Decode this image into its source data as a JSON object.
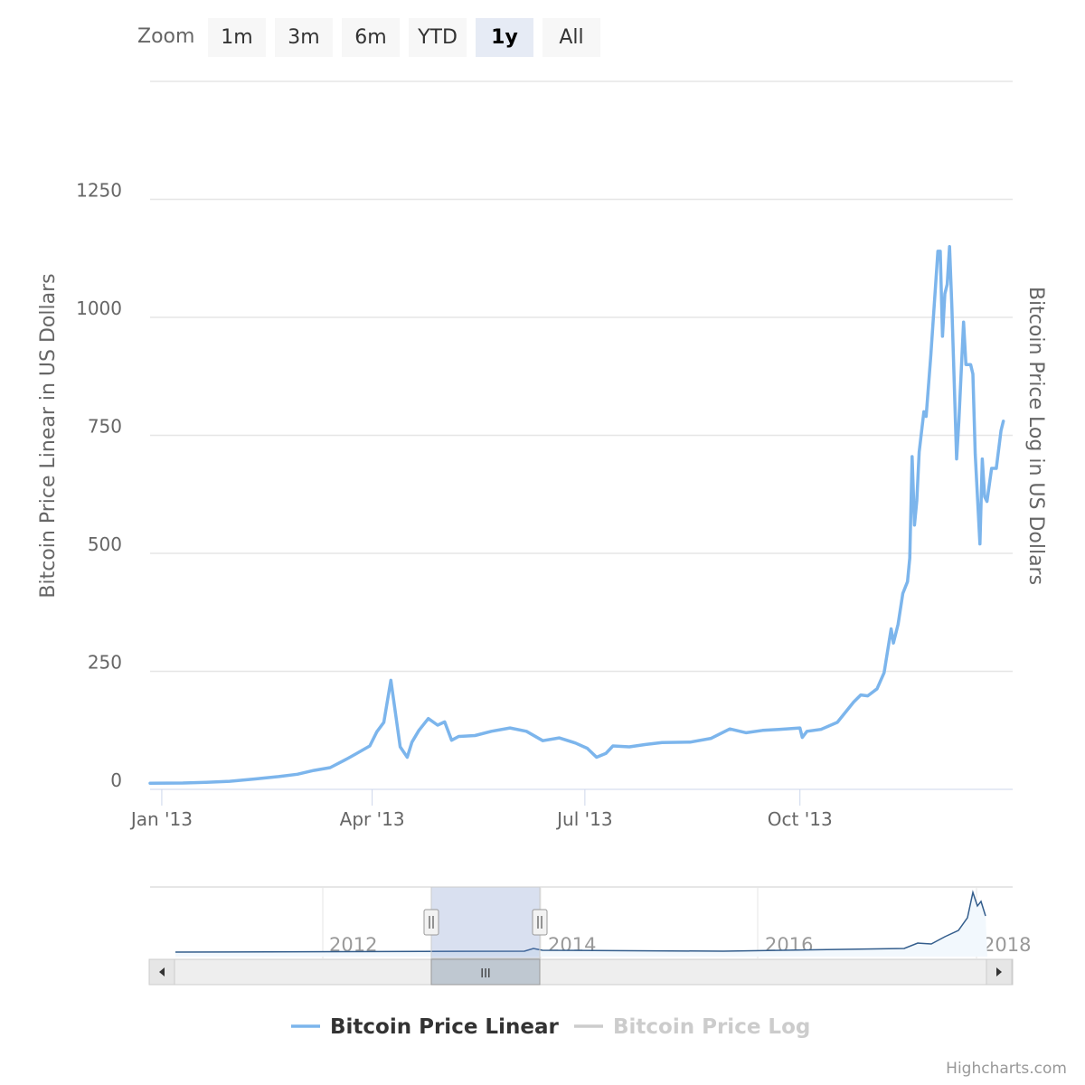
{
  "zoom": {
    "label": "Zoom",
    "buttons": [
      {
        "label": "1m",
        "selected": false
      },
      {
        "label": "3m",
        "selected": false
      },
      {
        "label": "6m",
        "selected": false
      },
      {
        "label": "YTD",
        "selected": false
      },
      {
        "label": "1y",
        "selected": true
      },
      {
        "label": "All",
        "selected": false
      }
    ]
  },
  "chart_data": {
    "type": "line",
    "title": "",
    "ylabel": "Bitcoin Price Linear in US Dollars",
    "ylabel_right": "Bitcoin Price Log in US Dollars",
    "xlabel": "",
    "ylim": [
      0,
      1500
    ],
    "yticks": [
      0,
      250,
      500,
      750,
      1000,
      1250
    ],
    "ytick_labels": [
      "0",
      "250",
      "500",
      "750",
      "1000",
      "1250"
    ],
    "xlim": [
      "2012-12-27",
      "2013-12-31"
    ],
    "xticks": [
      "2013-01-01",
      "2013-04-01",
      "2013-07-01",
      "2013-10-01"
    ],
    "xtick_labels": [
      "Jan '13",
      "Apr '13",
      "Jul '13",
      "Oct '13"
    ],
    "grid": true,
    "legend_position": "bottom-center",
    "series": [
      {
        "name": "Bitcoin Price Linear",
        "color": "#7cb5ec",
        "visible": true,
        "points": [
          [
            "2012-12-27",
            13
          ],
          [
            "2013-01-10",
            13.5
          ],
          [
            "2013-01-20",
            15
          ],
          [
            "2013-01-30",
            17
          ],
          [
            "2013-02-10",
            22
          ],
          [
            "2013-02-20",
            27
          ],
          [
            "2013-02-28",
            32
          ],
          [
            "2013-03-07",
            40
          ],
          [
            "2013-03-14",
            46
          ],
          [
            "2013-03-21",
            64
          ],
          [
            "2013-03-25",
            75
          ],
          [
            "2013-03-31",
            92
          ],
          [
            "2013-04-03",
            122
          ],
          [
            "2013-04-06",
            142
          ],
          [
            "2013-04-09",
            231
          ],
          [
            "2013-04-11",
            160
          ],
          [
            "2013-04-13",
            90
          ],
          [
            "2013-04-16",
            68
          ],
          [
            "2013-04-18",
            100
          ],
          [
            "2013-04-21",
            125
          ],
          [
            "2013-04-25",
            150
          ],
          [
            "2013-04-29",
            136
          ],
          [
            "2013-05-02",
            143
          ],
          [
            "2013-05-05",
            104
          ],
          [
            "2013-05-08",
            112
          ],
          [
            "2013-05-15",
            114
          ],
          [
            "2013-05-22",
            123
          ],
          [
            "2013-05-30",
            130
          ],
          [
            "2013-06-06",
            123
          ],
          [
            "2013-06-13",
            103
          ],
          [
            "2013-06-20",
            109
          ],
          [
            "2013-06-27",
            98
          ],
          [
            "2013-07-02",
            87
          ],
          [
            "2013-07-06",
            68
          ],
          [
            "2013-07-10",
            76
          ],
          [
            "2013-07-13",
            92
          ],
          [
            "2013-07-20",
            90
          ],
          [
            "2013-07-27",
            95
          ],
          [
            "2013-08-03",
            99
          ],
          [
            "2013-08-15",
            100
          ],
          [
            "2013-08-24",
            108
          ],
          [
            "2013-09-01",
            128
          ],
          [
            "2013-09-08",
            120
          ],
          [
            "2013-09-15",
            125
          ],
          [
            "2013-09-22",
            127
          ],
          [
            "2013-10-01",
            130
          ],
          [
            "2013-10-02",
            110
          ],
          [
            "2013-10-04",
            123
          ],
          [
            "2013-10-10",
            127
          ],
          [
            "2013-10-17",
            142
          ],
          [
            "2013-10-24",
            185
          ],
          [
            "2013-10-27",
            200
          ],
          [
            "2013-10-30",
            198
          ],
          [
            "2013-11-03",
            213
          ],
          [
            "2013-11-06",
            247
          ],
          [
            "2013-11-09",
            340
          ],
          [
            "2013-11-10",
            310
          ],
          [
            "2013-11-12",
            350
          ],
          [
            "2013-11-14",
            415
          ],
          [
            "2013-11-16",
            440
          ],
          [
            "2013-11-17",
            490
          ],
          [
            "2013-11-18",
            705
          ],
          [
            "2013-11-19",
            560
          ],
          [
            "2013-11-20",
            612
          ],
          [
            "2013-11-21",
            715
          ],
          [
            "2013-11-23",
            800
          ],
          [
            "2013-11-24",
            790
          ],
          [
            "2013-11-26",
            920
          ],
          [
            "2013-11-29",
            1140
          ],
          [
            "2013-11-30",
            1140
          ],
          [
            "2013-12-01",
            960
          ],
          [
            "2013-12-02",
            1050
          ],
          [
            "2013-12-03",
            1070
          ],
          [
            "2013-12-04",
            1150
          ],
          [
            "2013-12-05",
            1020
          ],
          [
            "2013-12-07",
            700
          ],
          [
            "2013-12-08",
            780
          ],
          [
            "2013-12-10",
            990
          ],
          [
            "2013-12-11",
            900
          ],
          [
            "2013-12-13",
            900
          ],
          [
            "2013-12-14",
            880
          ],
          [
            "2013-12-15",
            710
          ],
          [
            "2013-12-17",
            520
          ],
          [
            "2013-12-18",
            700
          ],
          [
            "2013-12-19",
            620
          ],
          [
            "2013-12-20",
            610
          ],
          [
            "2013-12-22",
            680
          ],
          [
            "2013-12-24",
            680
          ],
          [
            "2013-12-26",
            760
          ],
          [
            "2013-12-27",
            780
          ]
        ]
      },
      {
        "name": "Bitcoin Price Log",
        "color": "#cccccc",
        "visible": false,
        "points": []
      }
    ]
  },
  "navigator": {
    "labels": [
      "2012",
      "2014",
      "2016",
      "2018"
    ],
    "scroll_handle": "III"
  },
  "credits": "Highcharts.com"
}
